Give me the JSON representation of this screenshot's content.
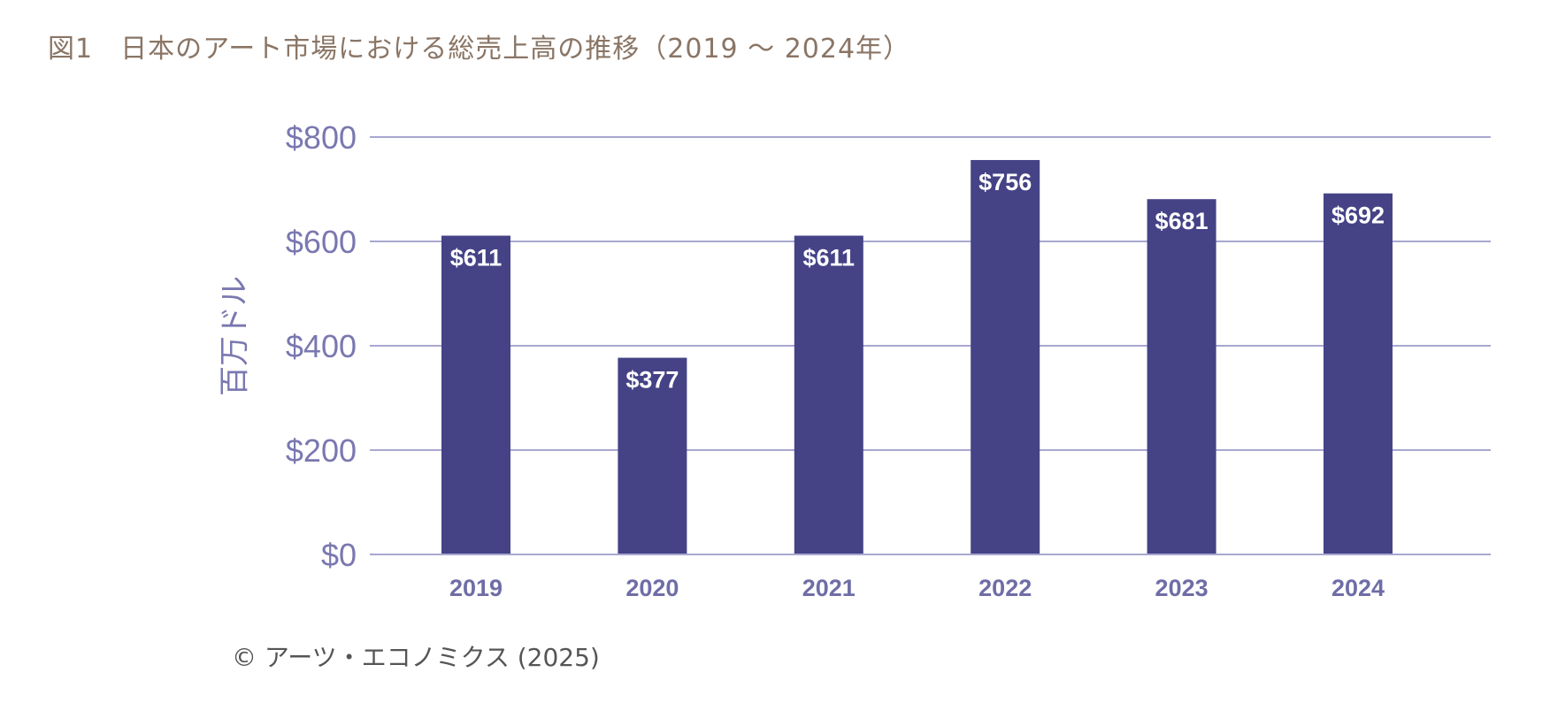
{
  "title": "図1　日本のアート市場における総売上高の推移（2019 ～ 2024年）",
  "credit": "©  アーツ・エコノミクス (2025)",
  "colors": {
    "bar": "#454386",
    "grid": "#a9a7cf",
    "axis_text": "#7a78b0",
    "title": "#8a7565"
  },
  "chart_data": {
    "type": "bar",
    "title": "図1　日本のアート市場における総売上高の推移（2019 ～ 2024年）",
    "xlabel": "",
    "ylabel": "百万ドル",
    "categories": [
      "2019",
      "2020",
      "2021",
      "2022",
      "2023",
      "2024"
    ],
    "values": [
      611,
      377,
      611,
      756,
      681,
      692
    ],
    "data_labels": [
      "$611",
      "$377",
      "$611",
      "$756",
      "$681",
      "$692"
    ],
    "ylim": [
      0,
      800
    ],
    "yticks": [
      0,
      200,
      400,
      600,
      800
    ],
    "ytick_labels": [
      "$0",
      "$200",
      "$400",
      "$600",
      "$800"
    ],
    "grid": true,
    "legend": "none"
  }
}
